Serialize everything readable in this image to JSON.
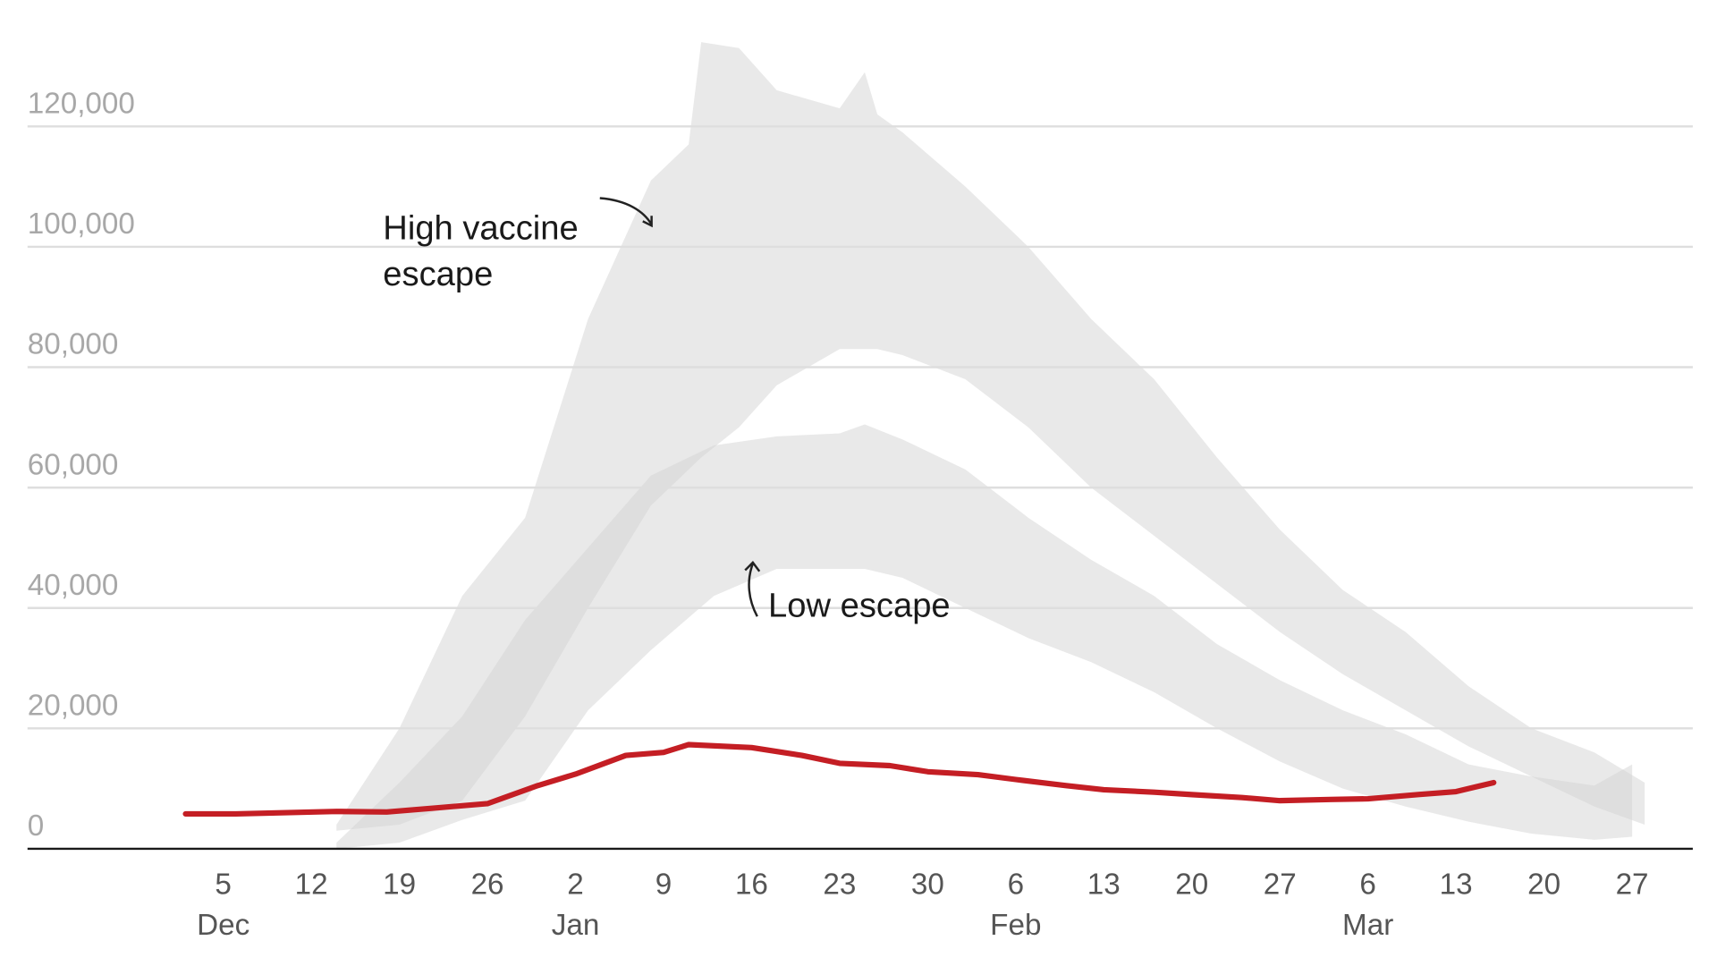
{
  "chart_data": {
    "type": "line",
    "xlim": [
      "Nov 19",
      "Apr 1"
    ],
    "ylim": [
      0,
      141000
    ],
    "yticks": [
      0,
      {
        "value": 20000,
        "label": "20,000"
      },
      {
        "value": 40000,
        "label": "40,000"
      },
      {
        "value": 60000,
        "label": "60,000"
      },
      {
        "value": 80000,
        "label": "80,000"
      },
      {
        "value": 100000,
        "label": "100,000"
      },
      {
        "value": 120000,
        "label": "120,000"
      }
    ],
    "xticks": [
      {
        "value": "Dec 5",
        "label": "5"
      },
      {
        "value": "Dec 12",
        "label": "12"
      },
      {
        "value": "Dec 19",
        "label": "19"
      },
      {
        "value": "Dec 26",
        "label": "26"
      },
      {
        "value": "Jan 2",
        "label": "2"
      },
      {
        "value": "Jan 9",
        "label": "9"
      },
      {
        "value": "Jan 16",
        "label": "16"
      },
      {
        "value": "Jan 23",
        "label": "23"
      },
      {
        "value": "Jan 30",
        "label": "30"
      },
      {
        "value": "Feb 6",
        "label": "6"
      },
      {
        "value": "Feb 13",
        "label": "13"
      },
      {
        "value": "Feb 20",
        "label": "20"
      },
      {
        "value": "Feb 27",
        "label": "27"
      },
      {
        "value": "Mar 6",
        "label": "6"
      },
      {
        "value": "Mar 13",
        "label": "13"
      },
      {
        "value": "Mar 20",
        "label": "20"
      },
      {
        "value": "Mar 27",
        "label": "27"
      }
    ],
    "month_labels": [
      {
        "value": "Dec 5",
        "label": "Dec"
      },
      {
        "value": "Jan 2",
        "label": "Jan"
      },
      {
        "value": "Feb 6",
        "label": "Feb"
      },
      {
        "value": "Mar 6",
        "label": "Mar"
      }
    ],
    "grid": true,
    "bands": [
      {
        "color": "#d4d4d4",
        "x": [
          "Dec 14",
          "Dec 19",
          "Dec 24",
          "Dec 29",
          "Jan 3",
          "Jan 8",
          "Jan 11",
          "Jan 12",
          "Jan 15",
          "Jan 18",
          "Jan 23",
          "Jan 25",
          "Jan 26",
          "Jan 28",
          "Feb 2",
          "Feb 7",
          "Feb 12",
          "Feb 17",
          "Feb 22",
          "Feb 27",
          "Mar 4",
          "Mar 9",
          "Mar 14",
          "Mar 19",
          "Mar 24",
          "Mar 28"
        ],
        "upper": [
          4000,
          20000,
          42000,
          55000,
          88000,
          111000,
          117000,
          134000,
          133000,
          126000,
          123000,
          129000,
          122000,
          119000,
          110000,
          100000,
          88000,
          78000,
          65000,
          53000,
          43000,
          36000,
          27000,
          20000,
          16000,
          11000
        ],
        "lower": [
          3000,
          4000,
          8000,
          22000,
          40000,
          57000,
          63000,
          65000,
          70000,
          77000,
          83000,
          83000,
          83000,
          82000,
          78000,
          70000,
          60000,
          52000,
          44000,
          36000,
          29000,
          23000,
          17000,
          12000,
          7000,
          4000
        ]
      },
      {
        "color": "#d4d4d4",
        "x": [
          "Dec 14",
          "Dec 19",
          "Dec 24",
          "Dec 29",
          "Jan 3",
          "Jan 8",
          "Jan 13",
          "Jan 18",
          "Jan 23",
          "Jan 25",
          "Jan 28",
          "Feb 2",
          "Feb 7",
          "Feb 12",
          "Feb 17",
          "Feb 22",
          "Feb 27",
          "Mar 4",
          "Mar 9",
          "Mar 14",
          "Mar 19",
          "Mar 24",
          "Mar 27"
        ],
        "upper": [
          1000,
          11000,
          22000,
          38000,
          50000,
          62000,
          67000,
          68500,
          69000,
          70500,
          68000,
          63000,
          55000,
          48000,
          42000,
          34000,
          28000,
          23000,
          19000,
          14000,
          12000,
          10500,
          14000
        ],
        "lower": [
          0,
          1000,
          4800,
          8000,
          23000,
          33000,
          42000,
          46500,
          46500,
          46500,
          45000,
          40000,
          35000,
          31000,
          26000,
          20000,
          14500,
          10000,
          7000,
          4500,
          2500,
          1500,
          2000
        ]
      }
    ],
    "series": [
      {
        "color": "#c41e24",
        "x": [
          "Dec 2",
          "Dec 6",
          "Dec 10",
          "Dec 14",
          "Dec 18",
          "Dec 22",
          "Dec 26",
          "Dec 30",
          "Jan 2",
          "Jan 6",
          "Jan 9",
          "Jan 11",
          "Jan 16",
          "Jan 20",
          "Jan 23",
          "Jan 27",
          "Jan 30",
          "Feb 3",
          "Feb 6",
          "Feb 10",
          "Feb 13",
          "Feb 17",
          "Feb 20",
          "Feb 24",
          "Feb 27",
          "Mar 3",
          "Mar 6",
          "Mar 10",
          "Mar 13",
          "Mar 16"
        ],
        "values": [
          5800,
          5800,
          6000,
          6200,
          6100,
          6800,
          7500,
          10500,
          12400,
          15500,
          16000,
          17300,
          16800,
          15500,
          14200,
          13800,
          12800,
          12300,
          11500,
          10500,
          9800,
          9400,
          9000,
          8500,
          8000,
          8200,
          8300,
          9000,
          9500,
          11000
        ]
      }
    ],
    "annotations": [
      {
        "lines": [
          "High vaccine",
          "escape"
        ]
      },
      {
        "lines": [
          "Low escape"
        ]
      }
    ]
  }
}
